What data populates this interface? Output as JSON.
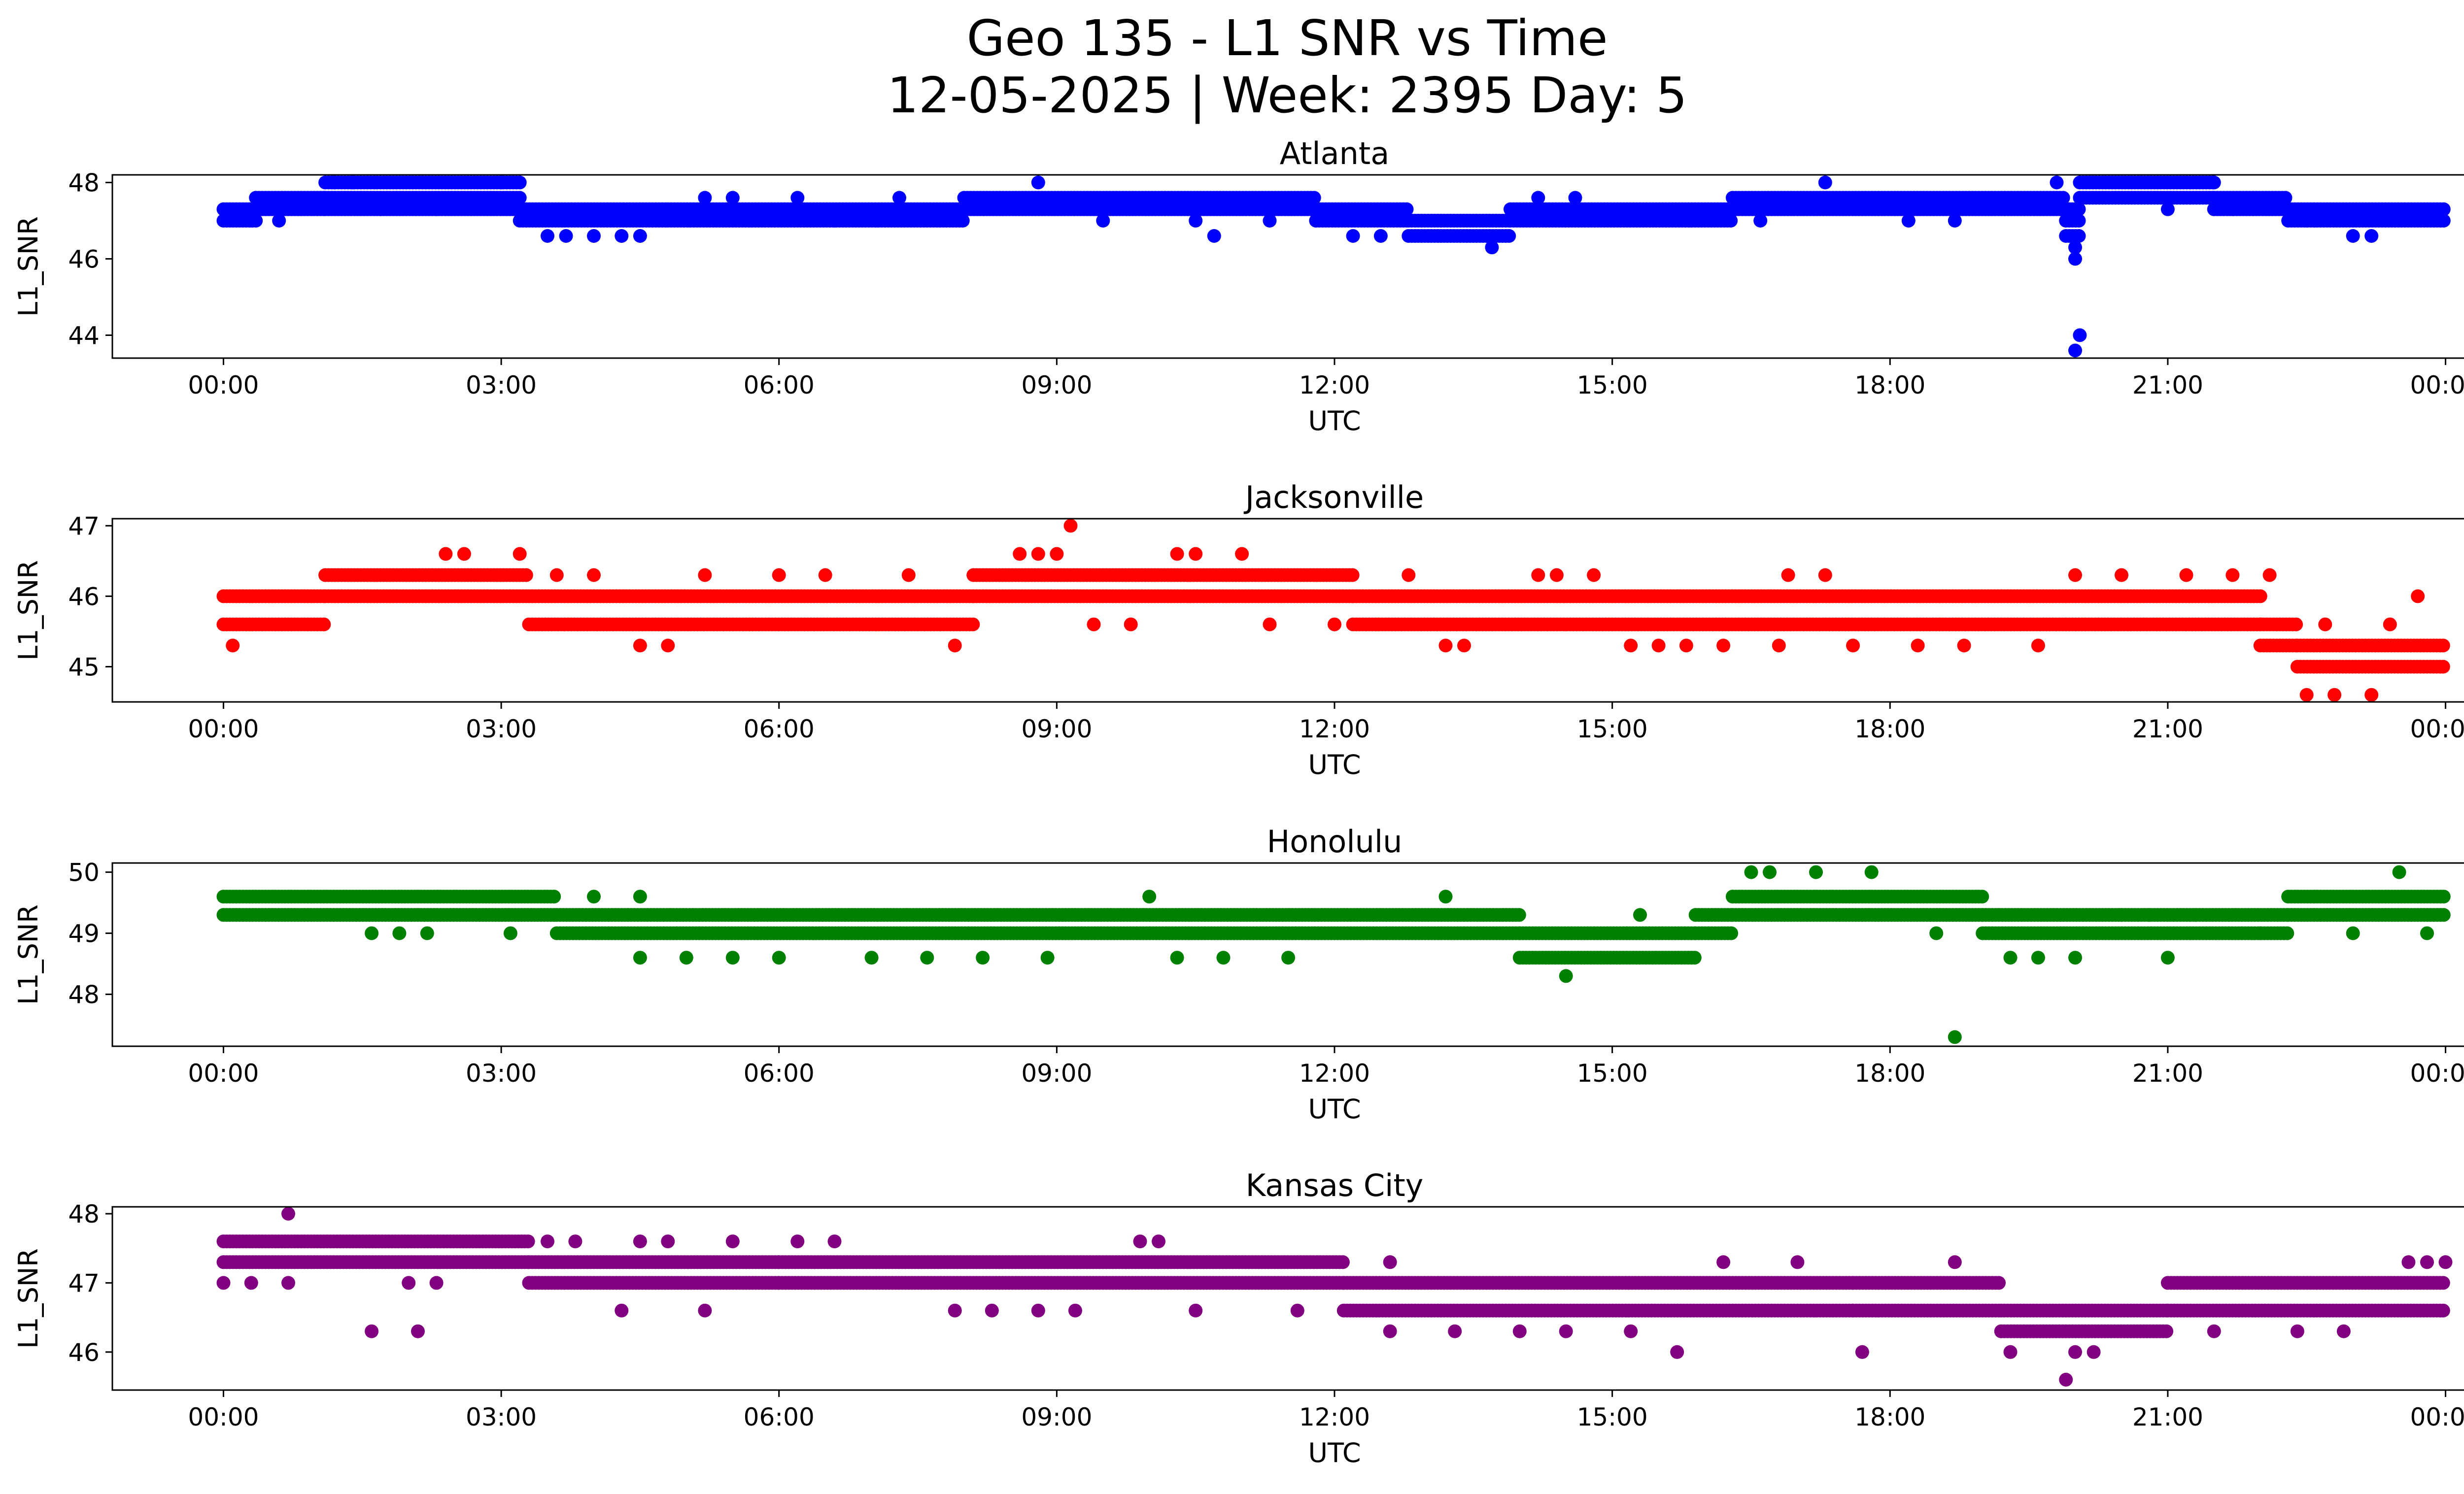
{
  "chart_data": {
    "type": "scatter",
    "title_line1": "Geo 135 - L1 SNR vs Time",
    "title_line2": "12-05-2025 | Week: 2395 Day: 5",
    "x_unit": "hours",
    "xlim": [
      -1.2,
      25.2
    ],
    "xticks": [
      0,
      3,
      6,
      9,
      12,
      15,
      18,
      21,
      24
    ],
    "xtick_labels": [
      "00:00",
      "03:00",
      "06:00",
      "09:00",
      "12:00",
      "15:00",
      "18:00",
      "21:00",
      "00:00"
    ],
    "xlabel": "UTC",
    "ylabel": "L1_SNR",
    "panels": [
      {
        "name": "Atlanta",
        "color": "#0000ff",
        "ylim": [
          43.4,
          48.2
        ],
        "yticks": [
          44,
          46,
          48
        ],
        "base_segments": [
          [
            0,
            0.35,
            [
              47.0,
              47.3
            ]
          ],
          [
            0.35,
            1.1,
            [
              47.3,
              47.6
            ]
          ],
          [
            1.1,
            3.2,
            [
              47.3,
              47.6,
              48.0
            ]
          ],
          [
            3.2,
            4.8,
            [
              47.0,
              47.3
            ]
          ],
          [
            4.8,
            8.0,
            [
              47.0,
              47.3
            ]
          ],
          [
            8.0,
            11.8,
            [
              47.3,
              47.6
            ]
          ],
          [
            11.8,
            12.8,
            [
              47.0,
              47.3
            ]
          ],
          [
            12.8,
            13.9,
            [
              46.6,
              47.0
            ]
          ],
          [
            13.9,
            16.3,
            [
              47.0,
              47.3
            ]
          ],
          [
            16.3,
            19.9,
            [
              47.3,
              47.6
            ]
          ],
          [
            19.9,
            20.05,
            [
              46.6,
              47.0,
              47.3
            ]
          ],
          [
            20.05,
            21.5,
            [
              47.6,
              48.0
            ]
          ],
          [
            21.5,
            22.3,
            [
              47.3,
              47.6
            ]
          ],
          [
            22.3,
            24.0,
            [
              47.0,
              47.3
            ]
          ]
        ],
        "outliers": [
          [
            0.6,
            47.0
          ],
          [
            1.2,
            48.0
          ],
          [
            1.4,
            48.0
          ],
          [
            1.7,
            47.3
          ],
          [
            2.3,
            47.3
          ],
          [
            3.0,
            48.0
          ],
          [
            3.5,
            46.6
          ],
          [
            3.7,
            46.6
          ],
          [
            4.0,
            46.6
          ],
          [
            4.3,
            46.6
          ],
          [
            4.5,
            46.6
          ],
          [
            5.2,
            47.6
          ],
          [
            5.5,
            47.6
          ],
          [
            6.2,
            47.6
          ],
          [
            6.6,
            47.0
          ],
          [
            7.3,
            47.6
          ],
          [
            8.8,
            48.0
          ],
          [
            9.5,
            47.0
          ],
          [
            10.5,
            47.0
          ],
          [
            10.7,
            46.6
          ],
          [
            11.3,
            47.0
          ],
          [
            12.2,
            46.6
          ],
          [
            12.5,
            46.6
          ],
          [
            13.7,
            46.3
          ],
          [
            14.2,
            47.6
          ],
          [
            14.6,
            47.6
          ],
          [
            16.6,
            47.0
          ],
          [
            17.3,
            48.0
          ],
          [
            18.2,
            47.0
          ],
          [
            18.7,
            47.0
          ],
          [
            19.8,
            48.0
          ],
          [
            20.0,
            46.0
          ],
          [
            20.0,
            46.3
          ],
          [
            20.05,
            44.0
          ],
          [
            20.0,
            43.6
          ],
          [
            21.0,
            47.3
          ],
          [
            21.5,
            48.0
          ],
          [
            21.7,
            47.3
          ],
          [
            22.5,
            47.0
          ],
          [
            23.0,
            46.6
          ],
          [
            23.2,
            46.6
          ]
        ]
      },
      {
        "name": "Jacksonville",
        "color": "#ff0000",
        "ylim": [
          44.5,
          47.1
        ],
        "yticks": [
          45,
          46,
          47
        ],
        "base_segments": [
          [
            0,
            1.1,
            [
              45.6,
              46.0
            ]
          ],
          [
            1.1,
            3.3,
            [
              46.0,
              46.3
            ]
          ],
          [
            3.3,
            8.1,
            [
              45.6,
              46.0
            ]
          ],
          [
            8.1,
            12.2,
            [
              46.0,
              46.3
            ]
          ],
          [
            12.2,
            22.0,
            [
              45.6,
              46.0
            ]
          ],
          [
            22.0,
            22.4,
            [
              45.3,
              45.6
            ]
          ],
          [
            22.4,
            24.0,
            [
              45.0,
              45.3
            ]
          ]
        ],
        "outliers": [
          [
            0.1,
            45.3
          ],
          [
            2.4,
            46.6
          ],
          [
            2.6,
            46.6
          ],
          [
            3.2,
            46.6
          ],
          [
            3.6,
            46.3
          ],
          [
            4.0,
            46.3
          ],
          [
            4.5,
            45.3
          ],
          [
            4.8,
            45.3
          ],
          [
            5.2,
            46.3
          ],
          [
            6.0,
            46.3
          ],
          [
            6.5,
            46.3
          ],
          [
            7.4,
            46.3
          ],
          [
            7.9,
            45.3
          ],
          [
            8.6,
            46.6
          ],
          [
            8.8,
            46.6
          ],
          [
            9.0,
            46.6
          ],
          [
            9.15,
            47.0
          ],
          [
            9.4,
            45.6
          ],
          [
            9.8,
            45.6
          ],
          [
            10.3,
            46.6
          ],
          [
            10.5,
            46.6
          ],
          [
            11.0,
            46.6
          ],
          [
            11.3,
            45.6
          ],
          [
            12.0,
            45.6
          ],
          [
            12.8,
            46.3
          ],
          [
            13.2,
            45.3
          ],
          [
            13.4,
            45.3
          ],
          [
            14.2,
            46.3
          ],
          [
            14.4,
            46.3
          ],
          [
            14.8,
            46.3
          ],
          [
            15.2,
            45.3
          ],
          [
            15.5,
            45.3
          ],
          [
            15.8,
            45.3
          ],
          [
            16.2,
            45.3
          ],
          [
            16.8,
            45.3
          ],
          [
            16.9,
            46.3
          ],
          [
            17.3,
            46.3
          ],
          [
            17.6,
            45.3
          ],
          [
            18.3,
            45.3
          ],
          [
            18.8,
            45.3
          ],
          [
            19.6,
            45.3
          ],
          [
            20.0,
            46.3
          ],
          [
            20.5,
            46.3
          ],
          [
            21.2,
            46.3
          ],
          [
            21.7,
            46.3
          ],
          [
            22.1,
            46.3
          ],
          [
            22.5,
            44.6
          ],
          [
            22.8,
            44.6
          ],
          [
            23.2,
            44.6
          ],
          [
            23.4,
            45.6
          ],
          [
            22.7,
            45.6
          ],
          [
            23.7,
            46.0
          ]
        ]
      },
      {
        "name": "Honolulu",
        "color": "#008000",
        "ylim": [
          47.15,
          50.15
        ],
        "yticks": [
          48,
          49,
          50
        ],
        "base_segments": [
          [
            0,
            3.6,
            [
              49.3,
              49.6
            ]
          ],
          [
            3.6,
            14.0,
            [
              49.0,
              49.3
            ]
          ],
          [
            14.0,
            15.9,
            [
              48.6,
              49.0
            ]
          ],
          [
            15.9,
            16.3,
            [
              49.0,
              49.3
            ]
          ],
          [
            16.3,
            19.0,
            [
              49.3,
              49.6
            ]
          ],
          [
            19.0,
            22.3,
            [
              49.0,
              49.3
            ]
          ],
          [
            22.3,
            24.0,
            [
              49.3,
              49.6
            ]
          ]
        ],
        "outliers": [
          [
            1.6,
            49.0
          ],
          [
            1.9,
            49.0
          ],
          [
            2.2,
            49.0
          ],
          [
            3.1,
            49.0
          ],
          [
            4.0,
            49.6
          ],
          [
            4.5,
            49.6
          ],
          [
            4.5,
            48.6
          ],
          [
            5.0,
            48.6
          ],
          [
            5.5,
            48.6
          ],
          [
            6.0,
            48.6
          ],
          [
            7.0,
            48.6
          ],
          [
            7.6,
            48.6
          ],
          [
            8.2,
            48.6
          ],
          [
            8.9,
            48.6
          ],
          [
            10.0,
            49.6
          ],
          [
            10.3,
            48.6
          ],
          [
            10.8,
            48.6
          ],
          [
            11.5,
            48.6
          ],
          [
            13.2,
            49.6
          ],
          [
            14.5,
            48.3
          ],
          [
            15.3,
            49.3
          ],
          [
            16.5,
            50.0
          ],
          [
            16.7,
            50.0
          ],
          [
            17.2,
            50.0
          ],
          [
            17.8,
            50.0
          ],
          [
            18.5,
            49.0
          ],
          [
            18.7,
            47.3
          ],
          [
            19.3,
            48.6
          ],
          [
            19.6,
            48.6
          ],
          [
            20.0,
            48.6
          ],
          [
            20.5,
            49.3
          ],
          [
            20.8,
            49.3
          ],
          [
            21.0,
            48.6
          ],
          [
            21.3,
            49.3
          ],
          [
            22.0,
            49.0
          ],
          [
            23.0,
            49.0
          ],
          [
            23.5,
            50.0
          ],
          [
            23.8,
            49.0
          ]
        ]
      },
      {
        "name": "Kansas City",
        "color": "#800080",
        "ylim": [
          45.45,
          48.1
        ],
        "yticks": [
          46,
          47,
          48
        ],
        "base_segments": [
          [
            0,
            3.3,
            [
              47.3,
              47.6
            ]
          ],
          [
            3.3,
            6.0,
            [
              47.0,
              47.3
            ]
          ],
          [
            6.0,
            12.1,
            [
              47.0,
              47.3
            ]
          ],
          [
            12.1,
            17.6,
            [
              46.6,
              47.0
            ]
          ],
          [
            17.6,
            19.2,
            [
              46.6,
              47.0
            ]
          ],
          [
            19.2,
            21.0,
            [
              46.3,
              46.6
            ]
          ],
          [
            21.0,
            24.0,
            [
              46.6,
              47.0
            ]
          ]
        ],
        "outliers": [
          [
            0.0,
            47.0
          ],
          [
            0.3,
            47.0
          ],
          [
            0.7,
            48.0
          ],
          [
            0.7,
            47.0
          ],
          [
            1.6,
            46.3
          ],
          [
            2.0,
            47.0
          ],
          [
            2.1,
            46.3
          ],
          [
            2.3,
            47.0
          ],
          [
            3.5,
            47.6
          ],
          [
            3.8,
            47.6
          ],
          [
            4.3,
            46.6
          ],
          [
            4.5,
            47.6
          ],
          [
            4.8,
            47.6
          ],
          [
            5.2,
            46.6
          ],
          [
            5.5,
            47.6
          ],
          [
            6.2,
            47.6
          ],
          [
            6.6,
            47.6
          ],
          [
            7.9,
            46.6
          ],
          [
            8.3,
            46.6
          ],
          [
            8.8,
            46.6
          ],
          [
            9.2,
            46.6
          ],
          [
            9.9,
            47.6
          ],
          [
            10.1,
            47.6
          ],
          [
            10.5,
            46.6
          ],
          [
            11.6,
            46.6
          ],
          [
            12.6,
            46.3
          ],
          [
            12.6,
            47.3
          ],
          [
            13.3,
            46.3
          ],
          [
            14.0,
            46.3
          ],
          [
            14.5,
            46.3
          ],
          [
            15.2,
            46.3
          ],
          [
            15.7,
            46.0
          ],
          [
            16.2,
            47.3
          ],
          [
            17.0,
            47.3
          ],
          [
            17.7,
            46.0
          ],
          [
            18.7,
            47.3
          ],
          [
            19.3,
            46.0
          ],
          [
            19.9,
            45.6
          ],
          [
            20.0,
            46.0
          ],
          [
            20.2,
            46.0
          ],
          [
            21.5,
            46.3
          ],
          [
            22.4,
            46.3
          ],
          [
            22.9,
            46.3
          ],
          [
            23.6,
            47.3
          ],
          [
            23.8,
            47.3
          ],
          [
            24.0,
            47.3
          ]
        ]
      }
    ]
  }
}
